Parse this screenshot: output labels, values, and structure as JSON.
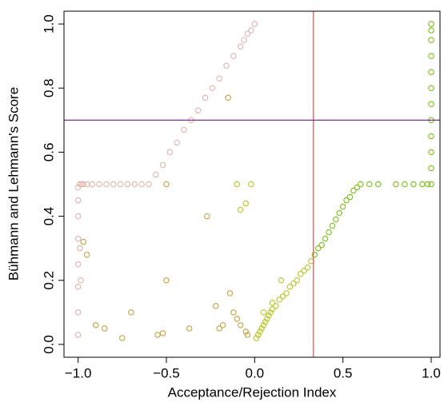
{
  "chart_data": {
    "type": "scatter",
    "x_label": "Acceptance/Rejection Index",
    "y_label": "Bühmann and Lehmann's Score",
    "xlim": [
      -1.08,
      1.05
    ],
    "ylim": [
      -0.04,
      1.04
    ],
    "xticks": [
      {
        "value": -1,
        "label": "−1.0"
      },
      {
        "value": -0.5,
        "label": "−0.5"
      },
      {
        "value": 0,
        "label": "0.0"
      },
      {
        "value": 0.5,
        "label": "0.5"
      },
      {
        "value": 1,
        "label": "1.0"
      }
    ],
    "yticks": [
      {
        "value": 0,
        "label": "0.0"
      },
      {
        "value": 0.2,
        "label": "0.2"
      },
      {
        "value": 0.4,
        "label": "0.4"
      },
      {
        "value": 0.6,
        "label": "0.6"
      },
      {
        "value": 0.8,
        "label": "0.8"
      },
      {
        "value": 1,
        "label": "1.0"
      }
    ],
    "vline": {
      "x": 0.333,
      "color": "#e8474a"
    },
    "hline": {
      "y": 0.7,
      "color": "#6a1b8a"
    },
    "series": [
      {
        "color": "#e2b4a8",
        "x": [
          -1,
          -1,
          -1,
          -1,
          -1,
          -1,
          -1,
          -1,
          -0.99,
          -0.98,
          -0.97,
          -0.95,
          -0.92,
          -0.88,
          -0.84,
          -0.8,
          -0.76,
          -0.72,
          -0.68,
          -0.64,
          -0.6,
          -0.56,
          -0.52,
          -0.48,
          -0.44,
          -0.4,
          -0.36,
          -0.32,
          -0.28,
          -0.24,
          -0.2,
          -0.16,
          -0.12,
          -0.08,
          -0.06,
          -0.04,
          -0.02,
          0,
          -0.99,
          -0.985
        ],
        "values": [
          0.03,
          0.1,
          0.18,
          0.25,
          0.33,
          0.4,
          0.45,
          0.49,
          0.5,
          0.5,
          0.5,
          0.5,
          0.5,
          0.5,
          0.5,
          0.5,
          0.5,
          0.5,
          0.5,
          0.5,
          0.5,
          0.53,
          0.56,
          0.6,
          0.63,
          0.67,
          0.7,
          0.73,
          0.77,
          0.8,
          0.83,
          0.87,
          0.9,
          0.93,
          0.95,
          0.97,
          0.98,
          1.0,
          0.3,
          0.2
        ]
      },
      {
        "color": "#c9a040",
        "x": [
          -0.9,
          -0.85,
          -0.75,
          -0.7,
          -0.55,
          -0.52,
          -0.5,
          -0.5,
          -0.37,
          -0.27,
          -0.22,
          -0.2,
          -0.18,
          -0.15,
          -0.14,
          -0.12,
          -0.1,
          -0.08,
          -0.05,
          -0.04,
          -0.95,
          -0.97
        ],
        "values": [
          0.06,
          0.05,
          0.02,
          0.1,
          0.03,
          0.035,
          0.2,
          0.5,
          0.05,
          0.4,
          0.12,
          0.05,
          0.06,
          0.77,
          0.16,
          0.1,
          0.08,
          0.06,
          0.04,
          0.03,
          0.28,
          0.32
        ]
      },
      {
        "color": "#b9c622",
        "x": [
          0.01,
          0.02,
          0.03,
          0.04,
          0.05,
          0.06,
          0.07,
          0.08,
          0.09,
          0.1,
          0.12,
          0.14,
          0.16,
          0.18,
          0.2,
          0.22,
          0.24,
          0.26,
          0.28,
          0.3,
          0.32,
          -0.1,
          -0.05,
          -0.08,
          -0.02,
          0.05,
          0.1,
          0.15
        ],
        "values": [
          0.02,
          0.03,
          0.04,
          0.05,
          0.06,
          0.07,
          0.08,
          0.09,
          0.1,
          0.11,
          0.12,
          0.14,
          0.15,
          0.16,
          0.18,
          0.19,
          0.2,
          0.22,
          0.23,
          0.24,
          0.26,
          0.5,
          0.44,
          0.42,
          0.5,
          0.1,
          0.13,
          0.2
        ]
      },
      {
        "color": "#78c012",
        "x": [
          0.34,
          0.36,
          0.38,
          0.4,
          0.42,
          0.44,
          0.46,
          0.48,
          0.5,
          0.52,
          0.54,
          0.56,
          0.58,
          0.6,
          0.65,
          0.7,
          0.8,
          0.85,
          0.9,
          0.95,
          0.98,
          1,
          1,
          1,
          1,
          1,
          1,
          1,
          1,
          1,
          1,
          1,
          1
        ],
        "values": [
          0.28,
          0.3,
          0.31,
          0.33,
          0.35,
          0.37,
          0.39,
          0.41,
          0.43,
          0.45,
          0.46,
          0.48,
          0.49,
          0.5,
          0.5,
          0.5,
          0.5,
          0.5,
          0.5,
          0.5,
          0.5,
          0.5,
          0.55,
          0.6,
          0.65,
          0.7,
          0.75,
          0.8,
          0.85,
          0.9,
          0.95,
          0.98,
          1.0
        ]
      }
    ]
  }
}
